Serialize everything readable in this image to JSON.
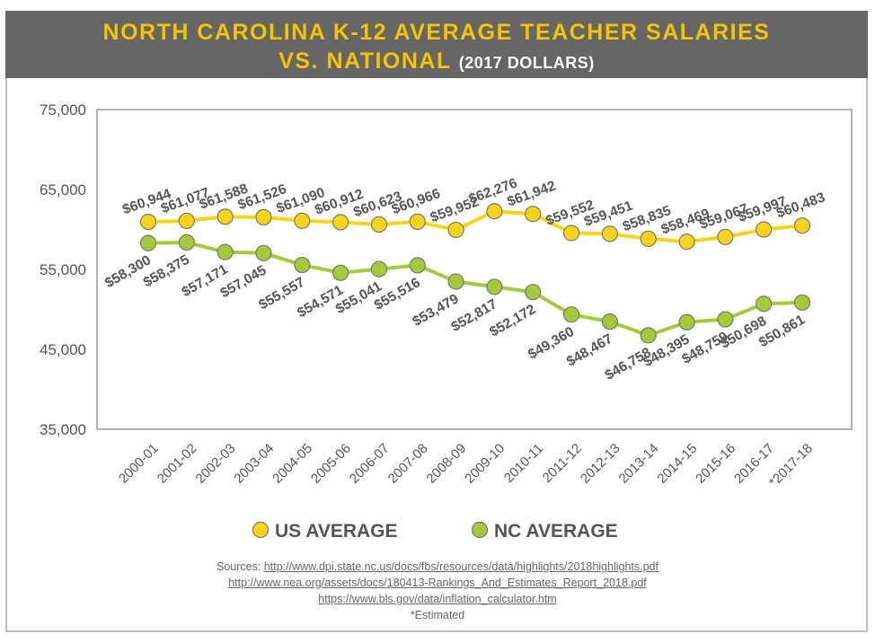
{
  "header": {
    "title_line1": "NORTH CAROLINA K-12 AVERAGE TEACHER SALARIES",
    "title_line2": "VS. NATIONAL",
    "title_sub": "(2017 DOLLARS)"
  },
  "chart_data": {
    "type": "line",
    "title": "NORTH CAROLINA K-12 AVERAGE TEACHER SALARIES VS. NATIONAL (2017 DOLLARS)",
    "categories": [
      "2000-01",
      "2001-02",
      "2002-03",
      "2003-04",
      "2004-05",
      "2005-06",
      "2006-07",
      "2007-08",
      "2008-09",
      "2009-10",
      "2010-11",
      "2011-12",
      "2012-13",
      "2013-14",
      "2014-15",
      "2015-16",
      "2016-17",
      "*2017-18"
    ],
    "ylim": [
      35000,
      75000
    ],
    "yticks": [
      "35,000",
      "45,000",
      "55,000",
      "65,000",
      "75,000"
    ],
    "grid": false,
    "legend_position": "bottom",
    "series": [
      {
        "name": "US AVERAGE",
        "color": "#f7d417",
        "values": [
          60944,
          61077,
          61588,
          61526,
          61090,
          60912,
          60623,
          60966,
          59952,
          62276,
          61942,
          59552,
          59451,
          58835,
          58469,
          59067,
          59997,
          60483
        ],
        "labels": [
          "$60,944",
          "$61,077",
          "$61,588",
          "$61,526",
          "$61,090",
          "$60,912",
          "$60,623",
          "$60,966",
          "$59,952",
          "$62,276",
          "$61,942",
          "$59,552",
          "$59,451",
          "$58,835",
          "$58,469",
          "$59,067",
          "$59,997",
          "$60,483"
        ]
      },
      {
        "name": "NC AVERAGE",
        "color": "#a6c93a",
        "values": [
          58300,
          58375,
          57171,
          57045,
          55557,
          54571,
          55041,
          55516,
          53479,
          52817,
          52172,
          49360,
          48467,
          46758,
          48395,
          48759,
          50698,
          50861
        ],
        "labels": [
          "$58,300",
          "$58,375",
          "$57,171",
          "$57,045",
          "$55,557",
          "$54,571",
          "$55,041",
          "$55,516",
          "$53,479",
          "$52,817",
          "$52,172",
          "$49,360",
          "$48,467",
          "$46,758",
          "$48,395",
          "$48,759",
          "$50,698",
          "$50,861"
        ]
      }
    ]
  },
  "sources": {
    "prefix": "Sources:",
    "links": [
      "http://www.dpi.state.nc.us/docs/fbs/resources/data/highlights/2018highlights.pdf",
      "http://www.nea.org/assets/docs/180413-Rankings_And_Estimates_Report_2018.pdf",
      "https://www.bls.gov/data/inflation_calculator.htm"
    ],
    "note": "*Estimated"
  }
}
